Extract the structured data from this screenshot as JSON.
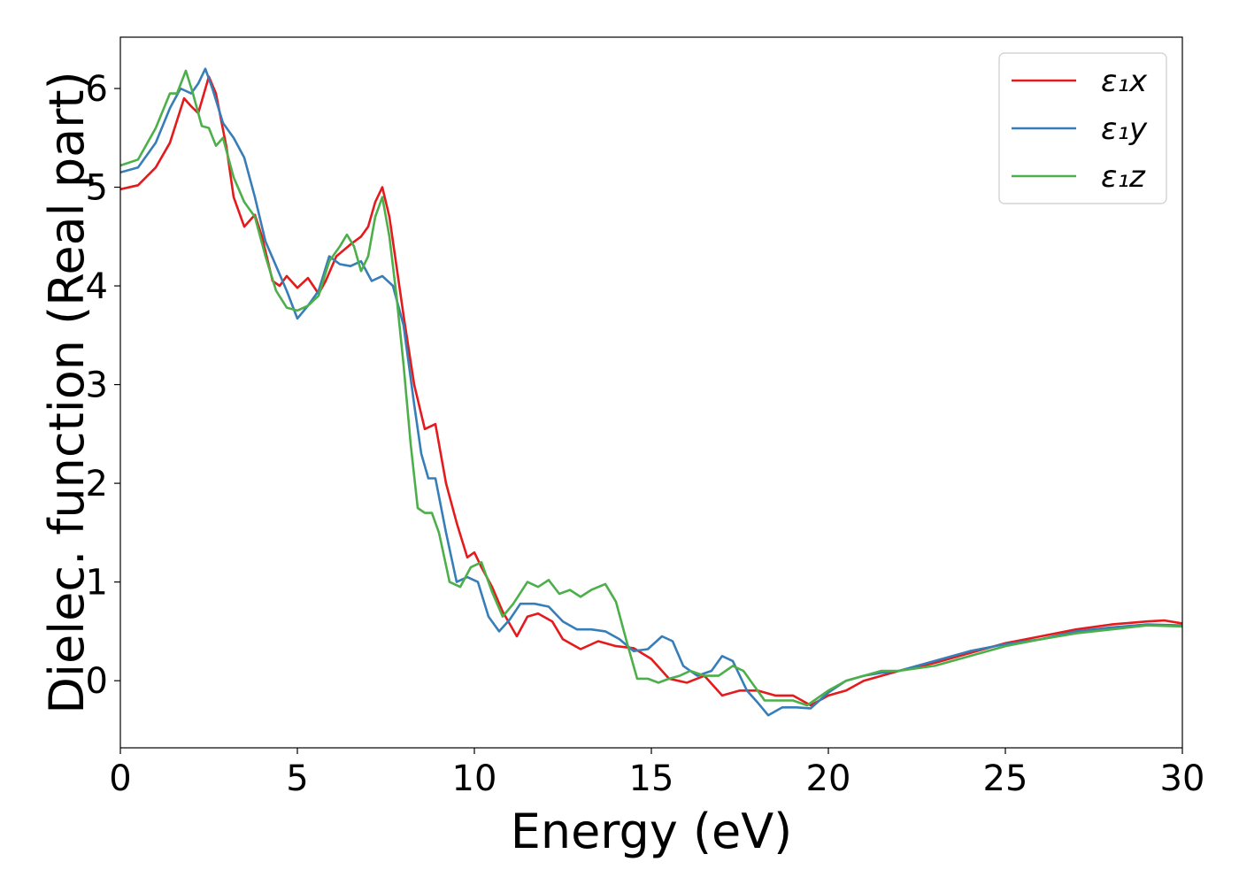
{
  "chart_data": {
    "type": "line",
    "title": "",
    "xlabel": "Energy (eV)",
    "ylabel": "Dielec. function (Real part)",
    "xlim": [
      0,
      30
    ],
    "ylim": [
      -0.68,
      6.52
    ],
    "xticks": [
      0,
      5,
      10,
      15,
      20,
      25,
      30
    ],
    "yticks": [
      0,
      1,
      2,
      3,
      4,
      5,
      6
    ],
    "grid": false,
    "legend_position": "top-right",
    "series": [
      {
        "name": "ε₁x",
        "color": "#e41a1c",
        "points": [
          [
            0,
            4.98
          ],
          [
            0.5,
            5.02
          ],
          [
            1.0,
            5.2
          ],
          [
            1.4,
            5.45
          ],
          [
            1.8,
            5.9
          ],
          [
            2.0,
            5.82
          ],
          [
            2.2,
            5.75
          ],
          [
            2.5,
            6.12
          ],
          [
            2.7,
            5.95
          ],
          [
            3.0,
            5.4
          ],
          [
            3.2,
            4.9
          ],
          [
            3.5,
            4.6
          ],
          [
            3.8,
            4.72
          ],
          [
            4.0,
            4.5
          ],
          [
            4.3,
            4.05
          ],
          [
            4.5,
            4.0
          ],
          [
            4.7,
            4.1
          ],
          [
            5.0,
            3.98
          ],
          [
            5.3,
            4.08
          ],
          [
            5.6,
            3.92
          ],
          [
            5.8,
            4.05
          ],
          [
            6.1,
            4.3
          ],
          [
            6.5,
            4.42
          ],
          [
            6.8,
            4.5
          ],
          [
            7.0,
            4.6
          ],
          [
            7.2,
            4.85
          ],
          [
            7.4,
            5.0
          ],
          [
            7.6,
            4.7
          ],
          [
            7.8,
            4.2
          ],
          [
            8.0,
            3.7
          ],
          [
            8.3,
            3.0
          ],
          [
            8.6,
            2.55
          ],
          [
            8.9,
            2.6
          ],
          [
            9.2,
            2.0
          ],
          [
            9.5,
            1.6
          ],
          [
            9.8,
            1.25
          ],
          [
            10.0,
            1.3
          ],
          [
            10.2,
            1.15
          ],
          [
            10.5,
            0.95
          ],
          [
            10.8,
            0.7
          ],
          [
            11.2,
            0.45
          ],
          [
            11.5,
            0.65
          ],
          [
            11.8,
            0.68
          ],
          [
            12.2,
            0.6
          ],
          [
            12.5,
            0.42
          ],
          [
            13.0,
            0.32
          ],
          [
            13.5,
            0.4
          ],
          [
            14.0,
            0.35
          ],
          [
            14.5,
            0.33
          ],
          [
            15.0,
            0.22
          ],
          [
            15.5,
            0.02
          ],
          [
            16.0,
            -0.02
          ],
          [
            16.5,
            0.05
          ],
          [
            17.0,
            -0.15
          ],
          [
            17.5,
            -0.1
          ],
          [
            18.0,
            -0.1
          ],
          [
            18.5,
            -0.15
          ],
          [
            19.0,
            -0.15
          ],
          [
            19.5,
            -0.25
          ],
          [
            20.0,
            -0.15
          ],
          [
            20.5,
            -0.1
          ],
          [
            21.0,
            0.0
          ],
          [
            21.5,
            0.05
          ],
          [
            22.0,
            0.1
          ],
          [
            23.0,
            0.18
          ],
          [
            24.0,
            0.28
          ],
          [
            25.0,
            0.38
          ],
          [
            26.0,
            0.45
          ],
          [
            27.0,
            0.52
          ],
          [
            28.0,
            0.57
          ],
          [
            29.0,
            0.6
          ],
          [
            29.5,
            0.61
          ],
          [
            30.0,
            0.58
          ]
        ]
      },
      {
        "name": "ε₁y",
        "color": "#377eb8",
        "points": [
          [
            0,
            5.15
          ],
          [
            0.5,
            5.2
          ],
          [
            1.0,
            5.45
          ],
          [
            1.4,
            5.8
          ],
          [
            1.7,
            6.0
          ],
          [
            2.0,
            5.95
          ],
          [
            2.2,
            6.05
          ],
          [
            2.4,
            6.2
          ],
          [
            2.6,
            6.0
          ],
          [
            2.9,
            5.65
          ],
          [
            3.2,
            5.5
          ],
          [
            3.5,
            5.3
          ],
          [
            3.8,
            4.9
          ],
          [
            4.1,
            4.45
          ],
          [
            4.4,
            4.2
          ],
          [
            4.7,
            3.95
          ],
          [
            5.0,
            3.67
          ],
          [
            5.3,
            3.8
          ],
          [
            5.6,
            3.95
          ],
          [
            5.9,
            4.3
          ],
          [
            6.2,
            4.22
          ],
          [
            6.5,
            4.2
          ],
          [
            6.8,
            4.25
          ],
          [
            7.1,
            4.05
          ],
          [
            7.4,
            4.1
          ],
          [
            7.7,
            4.0
          ],
          [
            8.0,
            3.6
          ],
          [
            8.3,
            2.8
          ],
          [
            8.5,
            2.3
          ],
          [
            8.7,
            2.05
          ],
          [
            8.9,
            2.05
          ],
          [
            9.2,
            1.5
          ],
          [
            9.5,
            1.0
          ],
          [
            9.8,
            1.05
          ],
          [
            10.1,
            1.0
          ],
          [
            10.4,
            0.65
          ],
          [
            10.7,
            0.5
          ],
          [
            11.0,
            0.62
          ],
          [
            11.3,
            0.78
          ],
          [
            11.7,
            0.78
          ],
          [
            12.1,
            0.75
          ],
          [
            12.5,
            0.6
          ],
          [
            12.9,
            0.52
          ],
          [
            13.3,
            0.52
          ],
          [
            13.7,
            0.5
          ],
          [
            14.1,
            0.42
          ],
          [
            14.5,
            0.3
          ],
          [
            14.9,
            0.32
          ],
          [
            15.3,
            0.45
          ],
          [
            15.6,
            0.4
          ],
          [
            15.9,
            0.15
          ],
          [
            16.3,
            0.05
          ],
          [
            16.7,
            0.1
          ],
          [
            17.0,
            0.25
          ],
          [
            17.3,
            0.2
          ],
          [
            17.7,
            -0.1
          ],
          [
            18.0,
            -0.22
          ],
          [
            18.3,
            -0.35
          ],
          [
            18.7,
            -0.27
          ],
          [
            19.1,
            -0.27
          ],
          [
            19.5,
            -0.28
          ],
          [
            20.0,
            -0.12
          ],
          [
            20.5,
            0.0
          ],
          [
            21.0,
            0.05
          ],
          [
            21.5,
            0.08
          ],
          [
            22.0,
            0.1
          ],
          [
            23.0,
            0.2
          ],
          [
            24.0,
            0.3
          ],
          [
            25.0,
            0.37
          ],
          [
            26.0,
            0.42
          ],
          [
            27.0,
            0.5
          ],
          [
            28.0,
            0.54
          ],
          [
            29.0,
            0.57
          ],
          [
            30.0,
            0.56
          ]
        ]
      },
      {
        "name": "ε₁z",
        "color": "#4daf4a",
        "points": [
          [
            0,
            5.22
          ],
          [
            0.5,
            5.28
          ],
          [
            1.0,
            5.6
          ],
          [
            1.4,
            5.95
          ],
          [
            1.6,
            5.95
          ],
          [
            1.85,
            6.18
          ],
          [
            2.05,
            5.95
          ],
          [
            2.3,
            5.62
          ],
          [
            2.5,
            5.6
          ],
          [
            2.7,
            5.42
          ],
          [
            2.9,
            5.5
          ],
          [
            3.2,
            5.1
          ],
          [
            3.5,
            4.85
          ],
          [
            3.8,
            4.7
          ],
          [
            4.1,
            4.3
          ],
          [
            4.4,
            3.95
          ],
          [
            4.7,
            3.78
          ],
          [
            5.0,
            3.75
          ],
          [
            5.3,
            3.8
          ],
          [
            5.6,
            3.9
          ],
          [
            5.9,
            4.25
          ],
          [
            6.2,
            4.4
          ],
          [
            6.4,
            4.52
          ],
          [
            6.6,
            4.4
          ],
          [
            6.8,
            4.15
          ],
          [
            7.0,
            4.3
          ],
          [
            7.2,
            4.7
          ],
          [
            7.4,
            4.9
          ],
          [
            7.6,
            4.5
          ],
          [
            7.8,
            3.9
          ],
          [
            8.0,
            3.2
          ],
          [
            8.2,
            2.4
          ],
          [
            8.4,
            1.75
          ],
          [
            8.6,
            1.7
          ],
          [
            8.8,
            1.7
          ],
          [
            9.0,
            1.5
          ],
          [
            9.3,
            1.0
          ],
          [
            9.6,
            0.95
          ],
          [
            9.9,
            1.15
          ],
          [
            10.2,
            1.2
          ],
          [
            10.5,
            0.9
          ],
          [
            10.8,
            0.65
          ],
          [
            11.1,
            0.78
          ],
          [
            11.5,
            1.0
          ],
          [
            11.8,
            0.95
          ],
          [
            12.1,
            1.02
          ],
          [
            12.4,
            0.88
          ],
          [
            12.7,
            0.92
          ],
          [
            13.0,
            0.85
          ],
          [
            13.3,
            0.92
          ],
          [
            13.7,
            0.98
          ],
          [
            14.0,
            0.8
          ],
          [
            14.3,
            0.4
          ],
          [
            14.6,
            0.02
          ],
          [
            14.9,
            0.02
          ],
          [
            15.2,
            -0.02
          ],
          [
            15.5,
            0.02
          ],
          [
            15.8,
            0.05
          ],
          [
            16.1,
            0.1
          ],
          [
            16.5,
            0.05
          ],
          [
            16.9,
            0.05
          ],
          [
            17.3,
            0.15
          ],
          [
            17.6,
            0.1
          ],
          [
            17.9,
            -0.05
          ],
          [
            18.2,
            -0.2
          ],
          [
            18.6,
            -0.2
          ],
          [
            19.0,
            -0.2
          ],
          [
            19.4,
            -0.25
          ],
          [
            20.0,
            -0.1
          ],
          [
            20.5,
            0.0
          ],
          [
            21.0,
            0.05
          ],
          [
            21.5,
            0.1
          ],
          [
            22.0,
            0.1
          ],
          [
            23.0,
            0.15
          ],
          [
            24.0,
            0.25
          ],
          [
            25.0,
            0.35
          ],
          [
            26.0,
            0.42
          ],
          [
            27.0,
            0.48
          ],
          [
            28.0,
            0.52
          ],
          [
            29.0,
            0.56
          ],
          [
            30.0,
            0.55
          ]
        ]
      }
    ]
  }
}
